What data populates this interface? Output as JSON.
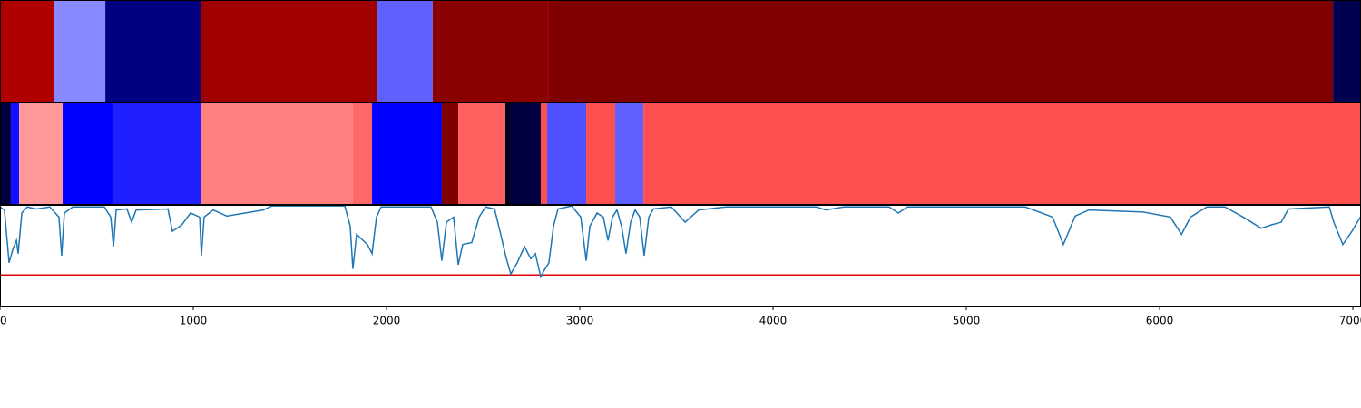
{
  "chart_data": [
    {
      "type": "band",
      "xlim": [
        0,
        7042
      ],
      "bins": [
        0,
        277,
        545,
        1042,
        1953,
        2239,
        2836,
        6897,
        7042
      ],
      "colors": [
        "#b00000",
        "#8888ff",
        "#000080",
        "#a00000",
        "#6060ff",
        "#8b0000",
        "#800000",
        "#000050"
      ]
    },
    {
      "type": "band",
      "xlim": [
        0,
        7042
      ],
      "bins": [
        0,
        56,
        99,
        324,
        582,
        1042,
        1826,
        1925,
        2286,
        2371,
        2615,
        2643,
        2798,
        2831,
        3033,
        3183,
        3329,
        7042
      ],
      "colors": [
        "#000040",
        "#1010ff",
        "#ff9999",
        "#0000ff",
        "#2020ff",
        "#ff8080",
        "#ff6868",
        "#0000ff",
        "#800000",
        "#ff6060",
        "#000020",
        "#000040",
        "#ff5050",
        "#5050ff",
        "#ff5050",
        "#6060ff",
        "#ff5050"
      ]
    },
    {
      "type": "line",
      "xlim": [
        0,
        7042
      ],
      "ylim": [
        0,
        1
      ],
      "color": "#1f77b4",
      "threshold": 0.31,
      "threshold_color": "#e00000",
      "xticks": [
        0,
        1000,
        2000,
        3000,
        4000,
        5000,
        6000,
        7000
      ],
      "x": [
        0,
        23,
        47,
        66,
        85,
        94,
        113,
        141,
        188,
        258,
        305,
        319,
        333,
        376,
        540,
        573,
        587,
        601,
        657,
        681,
        704,
        869,
        892,
        939,
        986,
        1033,
        1042,
        1056,
        1103,
        1174,
        1268,
        1362,
        1408,
        1784,
        1812,
        1826,
        1845,
        1901,
        1925,
        1948,
        1972,
        2230,
        2263,
        2286,
        2310,
        2347,
        2371,
        2394,
        2441,
        2479,
        2512,
        2559,
        2592,
        2620,
        2643,
        2676,
        2714,
        2746,
        2770,
        2798,
        2817,
        2840,
        2864,
        2887,
        2958,
        3005,
        3033,
        3052,
        3089,
        3122,
        3146,
        3169,
        3192,
        3216,
        3239,
        3263,
        3286,
        3310,
        3333,
        3357,
        3380,
        3474,
        3545,
        3615,
        3756,
        4225,
        4272,
        4366,
        4601,
        4648,
        4695,
        5305,
        5446,
        5502,
        5563,
        5634,
        5915,
        6056,
        6113,
        6160,
        6244,
        6338,
        6432,
        6526,
        6573,
        6629,
        6667,
        6878,
        6901,
        6948,
        6995,
        7042
      ],
      "values": [
        0.98,
        0.95,
        0.43,
        0.56,
        0.65,
        0.52,
        0.92,
        0.98,
        0.96,
        0.98,
        0.88,
        0.5,
        0.92,
        0.98,
        0.98,
        0.88,
        0.59,
        0.95,
        0.96,
        0.83,
        0.95,
        0.96,
        0.74,
        0.8,
        0.92,
        0.88,
        0.5,
        0.88,
        0.95,
        0.89,
        0.92,
        0.95,
        0.99,
        0.99,
        0.79,
        0.37,
        0.71,
        0.61,
        0.52,
        0.88,
        0.98,
        0.98,
        0.83,
        0.45,
        0.83,
        0.88,
        0.41,
        0.61,
        0.63,
        0.88,
        0.98,
        0.96,
        0.7,
        0.47,
        0.32,
        0.43,
        0.59,
        0.47,
        0.52,
        0.29,
        0.36,
        0.43,
        0.79,
        0.96,
        0.99,
        0.88,
        0.45,
        0.79,
        0.92,
        0.88,
        0.65,
        0.88,
        0.95,
        0.79,
        0.52,
        0.83,
        0.95,
        0.88,
        0.5,
        0.88,
        0.96,
        0.98,
        0.83,
        0.95,
        0.98,
        0.98,
        0.95,
        0.98,
        0.98,
        0.92,
        0.98,
        0.98,
        0.88,
        0.61,
        0.89,
        0.95,
        0.93,
        0.88,
        0.71,
        0.88,
        0.98,
        0.98,
        0.88,
        0.77,
        0.8,
        0.83,
        0.96,
        0.98,
        0.83,
        0.61,
        0.74,
        0.89
      ]
    }
  ]
}
